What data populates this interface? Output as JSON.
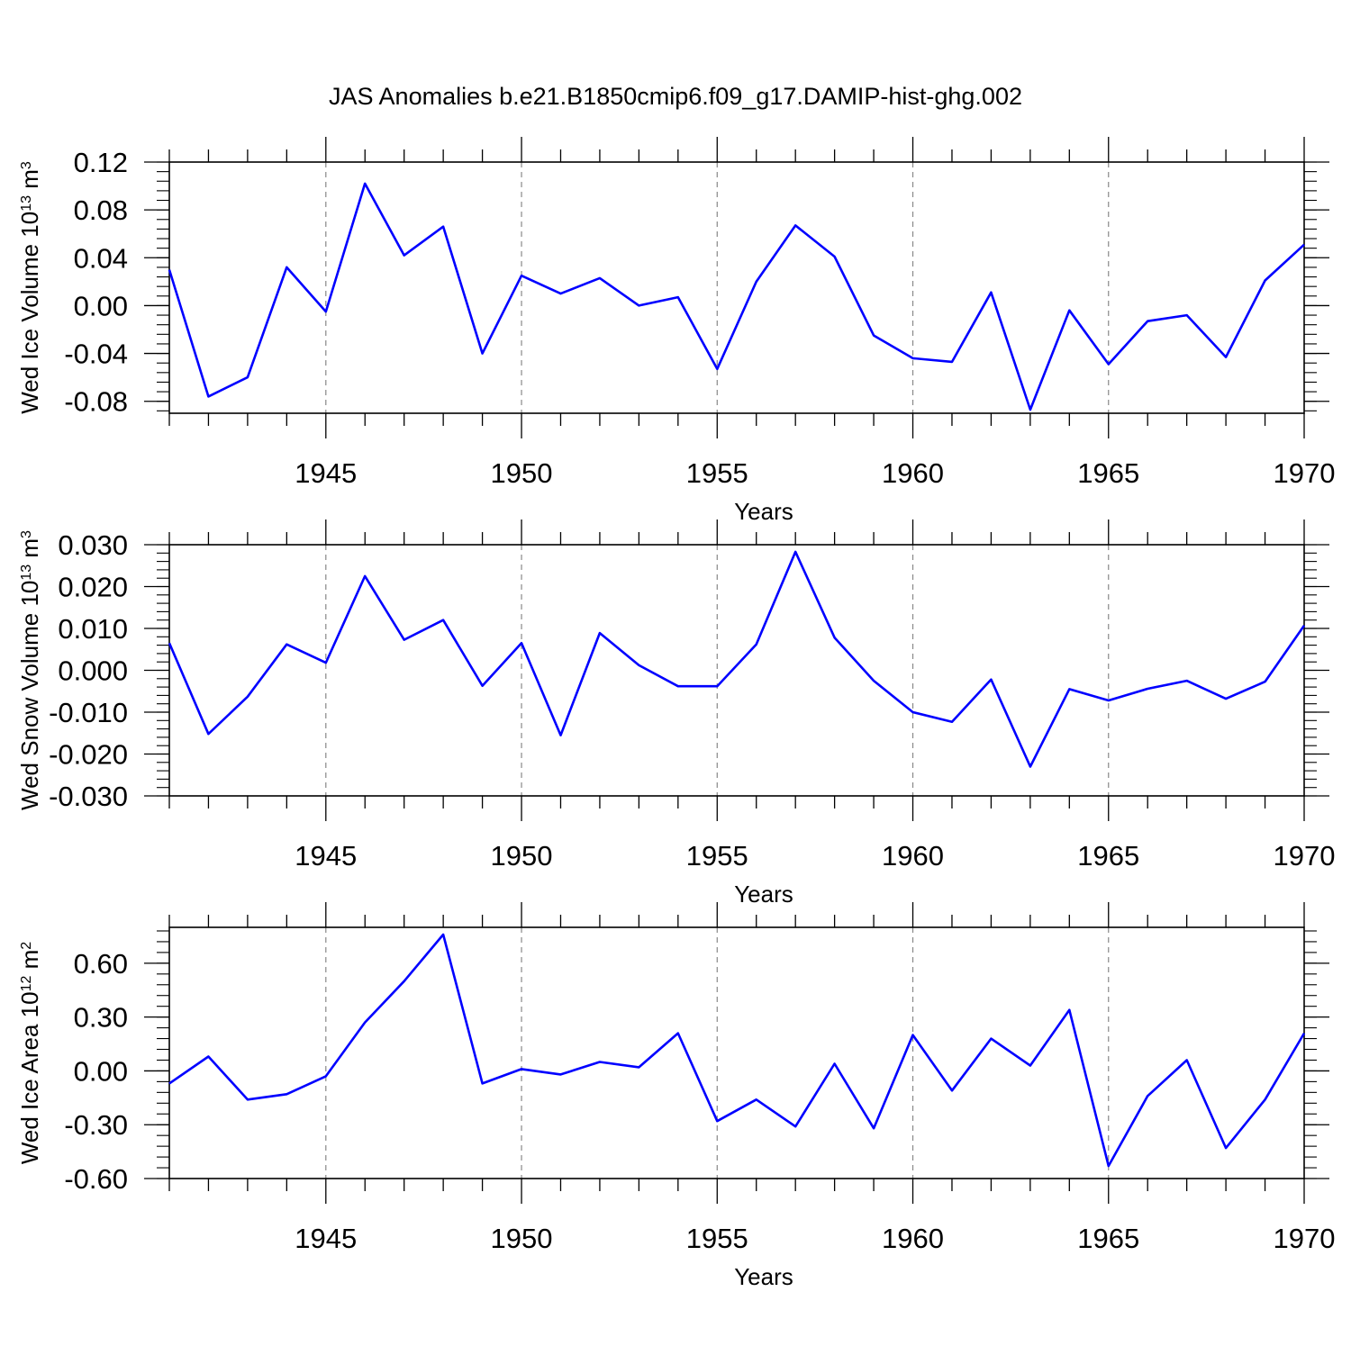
{
  "title": "JAS Anomalies b.e21.B1850cmip6.f09_g17.DAMIP-hist-ghg.002",
  "chart_data": [
    {
      "type": "line",
      "ylabel": {
        "main": "Wed Ice Volume 10",
        "sup": "13",
        "unit": " m",
        "unit_sup": "3"
      },
      "xlabel": "Years",
      "x": [
        1941,
        1942,
        1943,
        1944,
        1945,
        1946,
        1947,
        1948,
        1949,
        1950,
        1951,
        1952,
        1953,
        1954,
        1955,
        1956,
        1957,
        1958,
        1959,
        1960,
        1961,
        1962,
        1963,
        1964,
        1965,
        1966,
        1967,
        1968,
        1969,
        1970
      ],
      "series": [
        {
          "values": [
            0.03,
            -0.076,
            -0.06,
            0.032,
            -0.005,
            0.102,
            0.042,
            0.066,
            -0.04,
            0.025,
            0.01,
            0.023,
            0.0,
            0.007,
            -0.053,
            0.02,
            0.067,
            0.041,
            -0.025,
            -0.044,
            -0.047,
            0.011,
            -0.087,
            -0.004,
            -0.049,
            -0.013,
            -0.008,
            -0.043,
            0.021,
            0.051
          ],
          "color": "#0000ff"
        }
      ],
      "xlim": [
        1941,
        1970
      ],
      "ylim": [
        -0.09,
        0.12
      ],
      "yticks": [
        0.12,
        0.08,
        0.04,
        0.0,
        -0.04,
        -0.08
      ],
      "ytick_labels": [
        "0.12",
        "0.08",
        "0.04",
        "0.00",
        "-0.04",
        "-0.08"
      ],
      "xticks": [
        1945,
        1950,
        1955,
        1960,
        1965,
        1970
      ],
      "xtick_labels": [
        "1945",
        "1950",
        "1955",
        "1960",
        "1965",
        "1970"
      ],
      "grid": "vertical-dashed"
    },
    {
      "type": "line",
      "ylabel": {
        "main": "Wed Snow Volume 10",
        "sup": "13",
        "unit": " m",
        "unit_sup": "3"
      },
      "xlabel": "Years",
      "x": [
        1941,
        1942,
        1943,
        1944,
        1945,
        1946,
        1947,
        1948,
        1949,
        1950,
        1951,
        1952,
        1953,
        1954,
        1955,
        1956,
        1957,
        1958,
        1959,
        1960,
        1961,
        1962,
        1963,
        1964,
        1965,
        1966,
        1967,
        1968,
        1969,
        1970
      ],
      "series": [
        {
          "values": [
            0.0065,
            -0.0152,
            -0.0063,
            0.0062,
            0.0018,
            0.0225,
            0.0073,
            0.012,
            -0.0037,
            0.0065,
            -0.0155,
            0.0089,
            0.0012,
            -0.0038,
            -0.0038,
            0.0062,
            0.0283,
            0.0078,
            -0.0025,
            -0.01,
            -0.0123,
            -0.0022,
            -0.023,
            -0.0045,
            -0.0072,
            -0.0044,
            -0.0025,
            -0.0068,
            -0.0027,
            0.0107
          ],
          "color": "#0000ff"
        }
      ],
      "xlim": [
        1941,
        1970
      ],
      "ylim": [
        -0.03,
        0.03
      ],
      "yticks": [
        0.03,
        0.02,
        0.01,
        0.0,
        -0.01,
        -0.02,
        -0.03
      ],
      "ytick_labels": [
        "0.030",
        "0.020",
        "0.010",
        "0.000",
        "-0.010",
        "-0.020",
        "-0.030"
      ],
      "xticks": [
        1945,
        1950,
        1955,
        1960,
        1965,
        1970
      ],
      "xtick_labels": [
        "1945",
        "1950",
        "1955",
        "1960",
        "1965",
        "1970"
      ],
      "grid": "vertical-dashed"
    },
    {
      "type": "line",
      "ylabel": {
        "main": "Wed Ice Area 10",
        "sup": "12",
        "unit": " m",
        "unit_sup": "2"
      },
      "xlabel": "Years",
      "x": [
        1941,
        1942,
        1943,
        1944,
        1945,
        1946,
        1947,
        1948,
        1949,
        1950,
        1951,
        1952,
        1953,
        1954,
        1955,
        1956,
        1957,
        1958,
        1959,
        1960,
        1961,
        1962,
        1963,
        1964,
        1965,
        1966,
        1967,
        1968,
        1969,
        1970
      ],
      "series": [
        {
          "values": [
            -0.07,
            0.08,
            -0.16,
            -0.13,
            -0.03,
            0.27,
            0.5,
            0.76,
            -0.07,
            0.01,
            -0.02,
            0.05,
            0.02,
            0.21,
            -0.28,
            -0.16,
            -0.31,
            0.04,
            -0.32,
            0.2,
            -0.11,
            0.18,
            0.03,
            0.34,
            -0.53,
            -0.14,
            0.06,
            -0.43,
            -0.16,
            0.21
          ],
          "color": "#0000ff"
        }
      ],
      "xlim": [
        1941,
        1970
      ],
      "ylim": [
        -0.6,
        0.8
      ],
      "yticks": [
        0.6,
        0.3,
        0.0,
        -0.3,
        -0.6
      ],
      "ytick_labels": [
        "0.60",
        "0.30",
        "0.00",
        "-0.30",
        "-0.60"
      ],
      "xticks": [
        1945,
        1950,
        1955,
        1960,
        1965,
        1970
      ],
      "xtick_labels": [
        "1945",
        "1950",
        "1955",
        "1960",
        "1965",
        "1970"
      ],
      "grid": "vertical-dashed"
    }
  ]
}
